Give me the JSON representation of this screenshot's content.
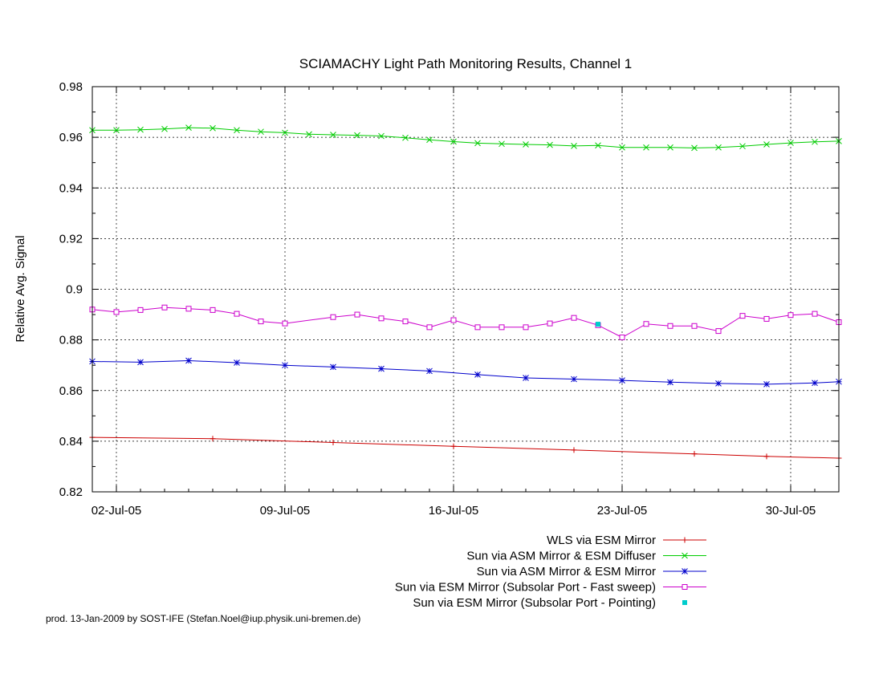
{
  "chart_data": {
    "type": "line",
    "title": "SCIAMACHY Light Path Monitoring Results, Channel 1",
    "xlabel": "",
    "ylabel": "Relative Avg. Signal",
    "x_unit": "date",
    "xlim": [
      "2005-07-01",
      "2005-08-01"
    ],
    "ylim": [
      0.82,
      0.98
    ],
    "x_ticks": [
      {
        "date": "2005-07-02",
        "label": "02-Jul-05"
      },
      {
        "date": "2005-07-09",
        "label": "09-Jul-05"
      },
      {
        "date": "2005-07-16",
        "label": "16-Jul-05"
      },
      {
        "date": "2005-07-23",
        "label": "23-Jul-05"
      },
      {
        "date": "2005-07-30",
        "label": "30-Jul-05"
      }
    ],
    "y_ticks": [
      "0.82",
      "0.84",
      "0.86",
      "0.88",
      "0.9",
      "0.92",
      "0.94",
      "0.96",
      "0.98"
    ],
    "grid": true,
    "legend_position": "below",
    "series": [
      {
        "name": "WLS via ESM Mirror",
        "color": "#cc0000",
        "marker": "plus",
        "x": [
          "2005-07-01",
          "2005-07-06",
          "2005-07-11",
          "2005-07-16",
          "2005-07-21",
          "2005-07-26",
          "2005-07-29",
          "2005-08-01"
        ],
        "y": [
          0.8415,
          0.841,
          0.8395,
          0.838,
          0.8365,
          0.835,
          0.834,
          0.8333
        ]
      },
      {
        "name": "Sun via ASM Mirror & ESM Diffuser",
        "color": "#00cc00",
        "marker": "x",
        "x": [
          "2005-07-01",
          "2005-07-02",
          "2005-07-03",
          "2005-07-04",
          "2005-07-05",
          "2005-07-06",
          "2005-07-07",
          "2005-07-08",
          "2005-07-09",
          "2005-07-10",
          "2005-07-11",
          "2005-07-12",
          "2005-07-13",
          "2005-07-14",
          "2005-07-15",
          "2005-07-16",
          "2005-07-17",
          "2005-07-18",
          "2005-07-19",
          "2005-07-20",
          "2005-07-21",
          "2005-07-22",
          "2005-07-23",
          "2005-07-24",
          "2005-07-25",
          "2005-07-26",
          "2005-07-27",
          "2005-07-28",
          "2005-07-29",
          "2005-07-30",
          "2005-07-31",
          "2005-08-01"
        ],
        "y": [
          0.9628,
          0.9628,
          0.963,
          0.9633,
          0.9638,
          0.9636,
          0.9628,
          0.9622,
          0.9618,
          0.9612,
          0.961,
          0.9608,
          0.9605,
          0.9598,
          0.959,
          0.9583,
          0.9577,
          0.9574,
          0.9572,
          0.957,
          0.9566,
          0.9568,
          0.956,
          0.956,
          0.956,
          0.9558,
          0.956,
          0.9565,
          0.9572,
          0.9578,
          0.9582,
          0.9585
        ]
      },
      {
        "name": "Sun via ASM Mirror & ESM Mirror",
        "color": "#0000cc",
        "marker": "star",
        "x": [
          "2005-07-01",
          "2005-07-03",
          "2005-07-05",
          "2005-07-07",
          "2005-07-09",
          "2005-07-11",
          "2005-07-13",
          "2005-07-15",
          "2005-07-17",
          "2005-07-19",
          "2005-07-21",
          "2005-07-23",
          "2005-07-25",
          "2005-07-27",
          "2005-07-29",
          "2005-07-31",
          "2005-08-01"
        ],
        "y": [
          0.8715,
          0.8712,
          0.8718,
          0.871,
          0.87,
          0.8693,
          0.8686,
          0.8677,
          0.8663,
          0.865,
          0.8645,
          0.864,
          0.8633,
          0.8628,
          0.8625,
          0.863,
          0.8635
        ]
      },
      {
        "name": "Sun via ESM Mirror (Subsolar Port - Fast sweep)",
        "color": "#cc00cc",
        "marker": "open-square",
        "x": [
          "2005-07-01",
          "2005-07-02",
          "2005-07-03",
          "2005-07-04",
          "2005-07-05",
          "2005-07-06",
          "2005-07-07",
          "2005-07-08",
          "2005-07-09",
          "2005-07-11",
          "2005-07-12",
          "2005-07-13",
          "2005-07-14",
          "2005-07-15",
          "2005-07-16",
          "2005-07-17",
          "2005-07-18",
          "2005-07-19",
          "2005-07-20",
          "2005-07-21",
          "2005-07-22",
          "2005-07-23",
          "2005-07-24",
          "2005-07-25",
          "2005-07-26",
          "2005-07-27",
          "2005-07-28",
          "2005-07-29",
          "2005-07-30",
          "2005-07-31",
          "2005-08-01"
        ],
        "y": [
          0.892,
          0.891,
          0.8918,
          0.8928,
          0.8923,
          0.8918,
          0.8903,
          0.8873,
          0.8865,
          0.889,
          0.89,
          0.8885,
          0.8873,
          0.885,
          0.8878,
          0.885,
          0.885,
          0.885,
          0.8865,
          0.8887,
          0.8858,
          0.881,
          0.8863,
          0.8855,
          0.8855,
          0.8835,
          0.8895,
          0.8883,
          0.8898,
          0.8903,
          0.887
        ]
      },
      {
        "name": "Sun via ESM Mirror (Subsolar Port - Pointing)",
        "color": "#00cccc",
        "marker": "filled-square",
        "x": [
          "2005-07-22"
        ],
        "y": [
          0.8862
        ]
      }
    ]
  },
  "footer": "prod. 13-Jan-2009 by SOST-IFE (Stefan.Noel@iup.physik.uni-bremen.de)"
}
